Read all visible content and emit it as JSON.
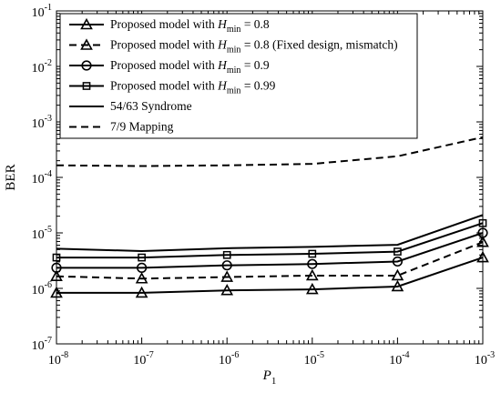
{
  "chart_data": {
    "type": "line",
    "title": "",
    "xlabel": "P",
    "xlabel_sub": "1",
    "ylabel": "BER",
    "xscale": "log",
    "yscale": "log",
    "xlim": [
      1e-08,
      0.001
    ],
    "ylim": [
      1e-07,
      0.1
    ],
    "grid": false,
    "legend_position": "top-left",
    "x": [
      1e-08,
      1e-07,
      1e-06,
      1e-05,
      0.0001,
      0.001
    ],
    "x_tick_labels": [
      {
        "base": "10",
        "exp": "-8"
      },
      {
        "base": "10",
        "exp": "-7"
      },
      {
        "base": "10",
        "exp": "-6"
      },
      {
        "base": "10",
        "exp": "-5"
      },
      {
        "base": "10",
        "exp": "-4"
      },
      {
        "base": "10",
        "exp": "-3"
      }
    ],
    "y_tick_labels": [
      {
        "base": "10",
        "exp": "-7"
      },
      {
        "base": "10",
        "exp": "-6"
      },
      {
        "base": "10",
        "exp": "-5"
      },
      {
        "base": "10",
        "exp": "-4"
      },
      {
        "base": "10",
        "exp": "-3"
      },
      {
        "base": "10",
        "exp": "-2"
      },
      {
        "base": "10",
        "exp": "-1"
      }
    ],
    "series": [
      {
        "legend_pre": "Proposed model with ",
        "legend_var": "H",
        "legend_sub": "min",
        "legend_post": " = 0.8",
        "style": "solid",
        "marker": "triangle",
        "values": [
          8.3e-07,
          8.3e-07,
          9.2e-07,
          9.6e-07,
          1.08e-06,
          3.6e-06
        ]
      },
      {
        "legend_pre": "Proposed model with ",
        "legend_var": "H",
        "legend_sub": "min",
        "legend_post": " = 0.8 (Fixed design, mismatch)",
        "style": "dashed",
        "marker": "triangle",
        "values": [
          1.65e-06,
          1.5e-06,
          1.6e-06,
          1.7e-06,
          1.7e-06,
          6.8e-06
        ]
      },
      {
        "legend_pre": "Proposed model with ",
        "legend_var": "H",
        "legend_sub": "min",
        "legend_post": " = 0.9",
        "style": "solid",
        "marker": "circle",
        "values": [
          2.35e-06,
          2.35e-06,
          2.6e-06,
          2.75e-06,
          3.05e-06,
          1e-05
        ]
      },
      {
        "legend_pre": "Proposed model with ",
        "legend_var": "H",
        "legend_sub": "min",
        "legend_post": " = 0.99",
        "style": "solid",
        "marker": "square",
        "values": [
          3.6e-06,
          3.6e-06,
          4e-06,
          4.2e-06,
          4.6e-06,
          1.5e-05
        ]
      },
      {
        "legend_pre": "54/63 Syndrome",
        "legend_var": "",
        "legend_sub": "",
        "legend_post": "",
        "style": "solid",
        "marker": "none",
        "values": [
          5.2e-06,
          4.7e-06,
          5.3e-06,
          5.6e-06,
          6.1e-06,
          2.1e-05
        ]
      },
      {
        "legend_pre": "7/9 Mapping",
        "legend_var": "",
        "legend_sub": "",
        "legend_post": "",
        "style": "dashed",
        "marker": "none",
        "values": [
          0.000165,
          0.00016,
          0.000165,
          0.000175,
          0.00024,
          0.00053
        ]
      }
    ]
  }
}
